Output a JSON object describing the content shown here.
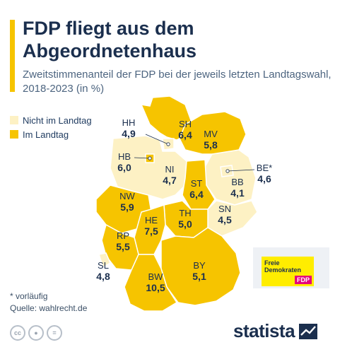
{
  "header": {
    "title": "FDP fliegt aus dem Abgeordnetenhaus",
    "subtitle": "Zweitstimmenanteil der FDP bei der jeweils letzten Landtagswahl, 2018-2023 (in %)"
  },
  "colors": {
    "accent": "#f6c400",
    "not_in_parliament": "#fdf1c4",
    "in_parliament": "#f6c400",
    "text_dark": "#1b2f4e"
  },
  "legend": {
    "items": [
      {
        "label": "Nicht im Landtag",
        "color": "#fdf1c4"
      },
      {
        "label": "Im Landtag",
        "color": "#f6c400"
      }
    ]
  },
  "chart_data": {
    "type": "choropleth",
    "unit": "%",
    "regions": [
      {
        "code": "SH",
        "value": "6,4",
        "status": "Im Landtag"
      },
      {
        "code": "HH",
        "value": "4,9",
        "status": "Nicht im Landtag"
      },
      {
        "code": "MV",
        "value": "5,8",
        "status": "Im Landtag"
      },
      {
        "code": "HB",
        "value": "6,0",
        "status": "Im Landtag"
      },
      {
        "code": "NI",
        "value": "4,7",
        "status": "Nicht im Landtag"
      },
      {
        "code": "BE*",
        "value": "4,6",
        "status": "Nicht im Landtag"
      },
      {
        "code": "BB",
        "value": "4,1",
        "status": "Nicht im Landtag"
      },
      {
        "code": "ST",
        "value": "6,4",
        "status": "Im Landtag"
      },
      {
        "code": "NW",
        "value": "5,9",
        "status": "Im Landtag"
      },
      {
        "code": "SN",
        "value": "4,5",
        "status": "Nicht im Landtag"
      },
      {
        "code": "TH",
        "value": "5,0",
        "status": "Im Landtag"
      },
      {
        "code": "HE",
        "value": "7,5",
        "status": "Im Landtag"
      },
      {
        "code": "RP",
        "value": "5,5",
        "status": "Im Landtag"
      },
      {
        "code": "SL",
        "value": "4,8",
        "status": "Nicht im Landtag"
      },
      {
        "code": "BY",
        "value": "5,1",
        "status": "Im Landtag"
      },
      {
        "code": "BW",
        "value": "10,5",
        "status": "Im Landtag"
      }
    ]
  },
  "logo": {
    "line1": "Freie",
    "line2": "Demokraten",
    "line3": "FDP"
  },
  "footer": {
    "note": "* vorläufig",
    "source": "Quelle: wahlrecht.de",
    "brand": "statista",
    "license_icons": [
      "cc-icon",
      "attribution-icon",
      "no-derivatives-icon"
    ]
  }
}
